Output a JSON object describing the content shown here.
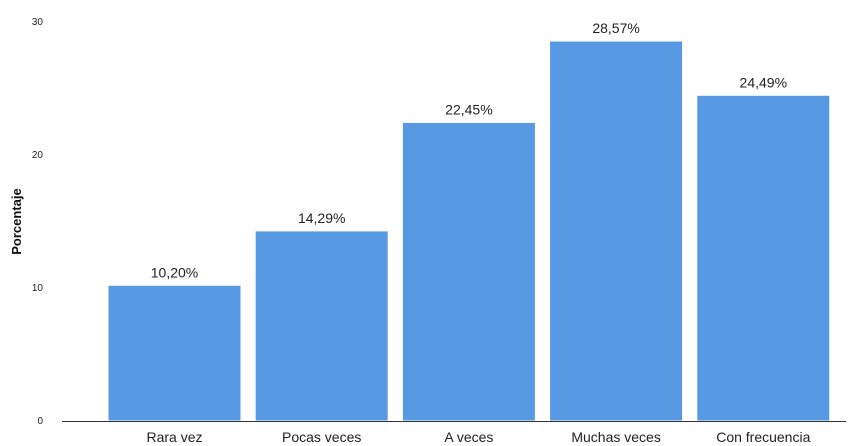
{
  "chart_data": {
    "type": "bar",
    "categories": [
      "Rara vez",
      "Pocas veces",
      "A veces",
      "Muchas veces",
      "Con frecuencia"
    ],
    "values": [
      10.2,
      14.29,
      22.45,
      28.57,
      24.49
    ],
    "data_labels": [
      "10,20%",
      "14,29%",
      "22,45%",
      "28,57%",
      "24,49%"
    ],
    "title": "",
    "xlabel": "",
    "ylabel": "Porcentaje",
    "ylim": [
      0,
      30
    ],
    "yticks": [
      0,
      10,
      20,
      30
    ],
    "ytick_labels": [
      "0",
      "10",
      "20",
      "30"
    ],
    "grid": false,
    "legend": "none",
    "bar_color": "#5899e4",
    "bar_edge_color": "#ffffff"
  }
}
